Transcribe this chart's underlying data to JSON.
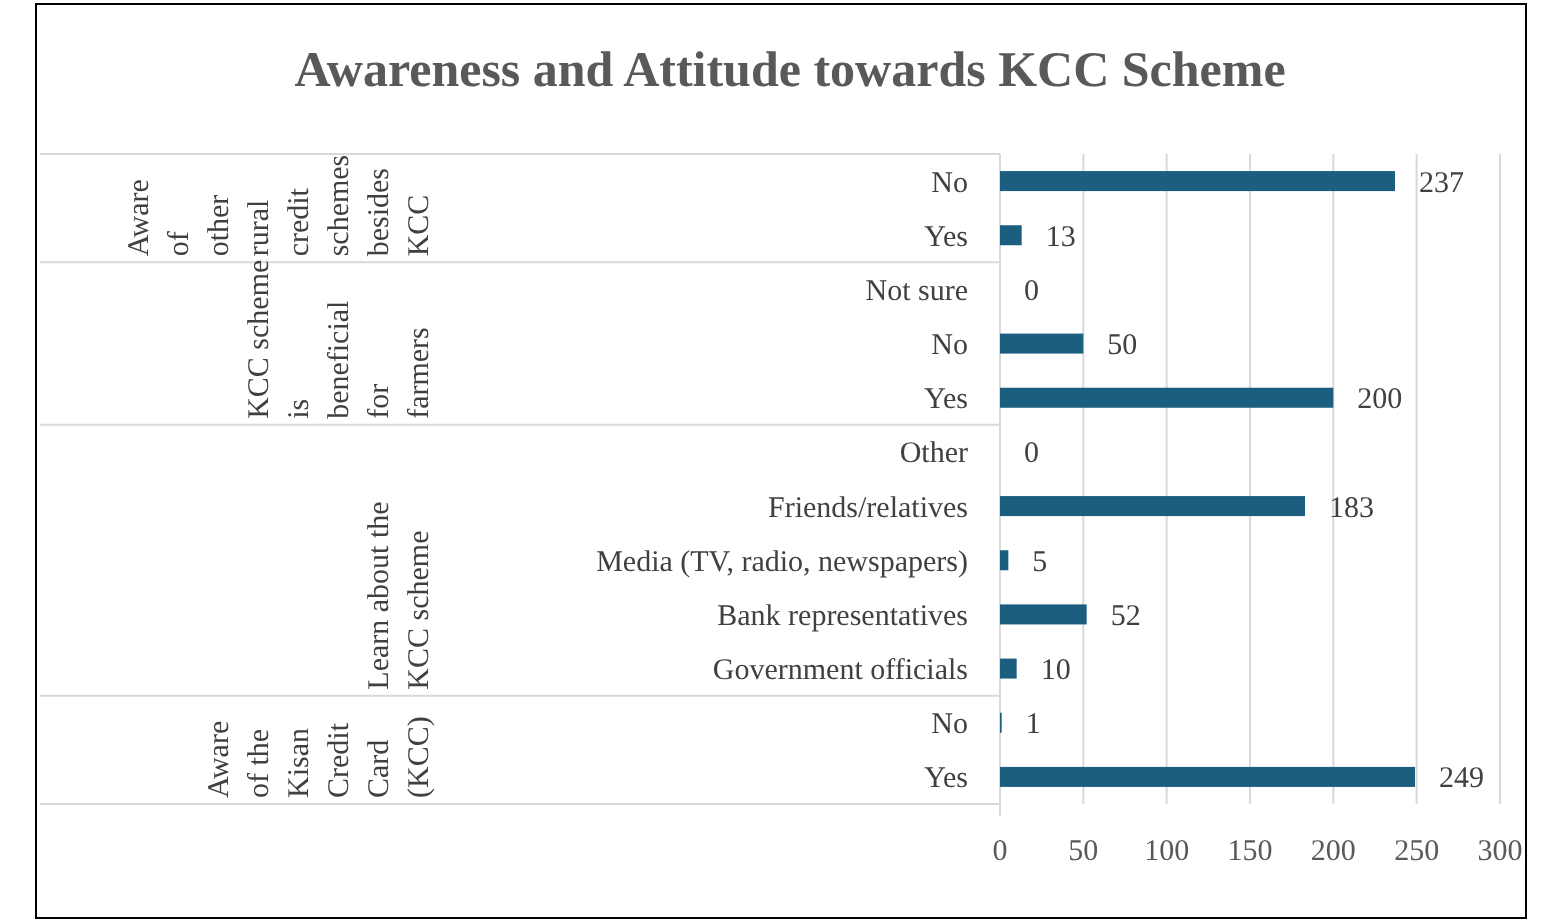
{
  "chart_data": {
    "type": "bar",
    "orientation": "horizontal",
    "title": "Awareness and Attitude towards KCC Scheme",
    "categories": [
      "No",
      "Yes",
      "Not sure",
      "No",
      "Yes",
      "Other",
      "Friends/relatives",
      "Media (TV, radio, newspapers)",
      "Bank representatives",
      "Government officials",
      "No",
      "Yes"
    ],
    "values": [
      237,
      13,
      0,
      50,
      200,
      0,
      183,
      5,
      52,
      10,
      1,
      249
    ],
    "color": "#1b5e80",
    "xlim": [
      0,
      300
    ],
    "xticks": [
      0,
      50,
      100,
      150,
      200,
      250,
      300
    ],
    "grid": "x",
    "data_labels": true,
    "annotations": [
      "Aware of other rural credit schemes besides KCC",
      "KCC scheme is beneficial for farmers",
      "Learn about the KCC scheme",
      "Aware of the Kisan Credit Card (KCC)"
    ]
  }
}
